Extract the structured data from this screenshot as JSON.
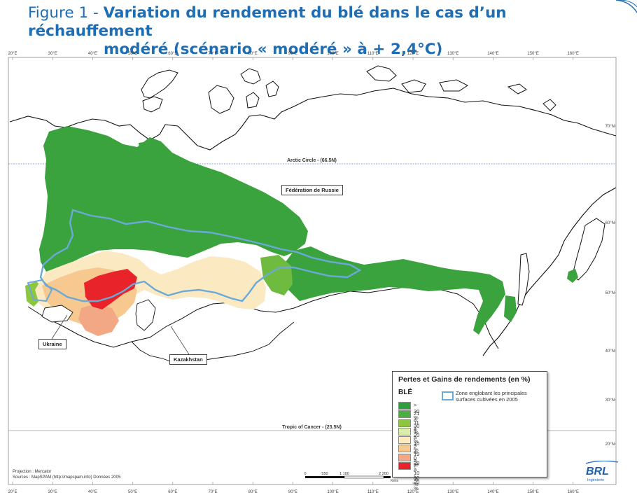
{
  "title": {
    "label": "Figure 1 - ",
    "line1": "Variation du rendement du blé dans le cas d’un réchauffement",
    "line2": "modéré (scénario « modéré » à + 2,4°C)"
  },
  "map": {
    "longitude_ticks": [
      "20°E",
      "30°E",
      "40°E",
      "50°E",
      "60°E",
      "70°E",
      "80°E",
      "90°E",
      "100°E",
      "110°E",
      "120°E",
      "130°E",
      "140°E",
      "150°E",
      "160°E"
    ],
    "latitude_ticks": [
      "70°N",
      "60°N",
      "50°N",
      "40°N",
      "30°N",
      "20°N"
    ],
    "reference_lines": {
      "arctic": "Arctic Circle - (66.5N)",
      "cancer": "Tropic of Cancer - (23.5N)"
    },
    "countries": {
      "russia": "Fédération de Russie",
      "ukraine": "Ukraine",
      "kazakhstan": "Kazakhstan"
    },
    "projection": "Projection : Mercator",
    "sources": "Sources : MapSPAM (http://mapspam.info) Données 2005",
    "scale": {
      "ticks": [
        "0",
        "550",
        "1 100",
        "2 200"
      ],
      "unit": "Kms"
    },
    "colors": {
      "arctic_line": "#5a8fc7",
      "cancer_line": "#9a9a9a",
      "zone_outline": "#6aa9d8"
    }
  },
  "legend": {
    "title": "Pertes et Gains de rendements (en %)",
    "crop": "BLÉ",
    "zone_label": "Zone englobant les principales surfaces cultivées en 2005",
    "classes": [
      {
        "label": "> 30 %",
        "color": "#2e9e3c"
      },
      {
        "label": "21 à 30 %",
        "color": "#4caf3f"
      },
      {
        "label": "11 à 20 %",
        "color": "#8cc63f"
      },
      {
        "label": "1 à 10 %",
        "color": "#dcecaa"
      },
      {
        "label": "- 9 à 0 %",
        "color": "#fbe9c2"
      },
      {
        "label": "- 19 à - 10 %",
        "color": "#f7c88f"
      },
      {
        "label": "- 29 à - 20 %",
        "color": "#f2a884"
      },
      {
        "label": "< - 30 %",
        "color": "#e8232a"
      }
    ]
  },
  "logo": {
    "text": "BRL",
    "subtext": "Ingénierie"
  }
}
